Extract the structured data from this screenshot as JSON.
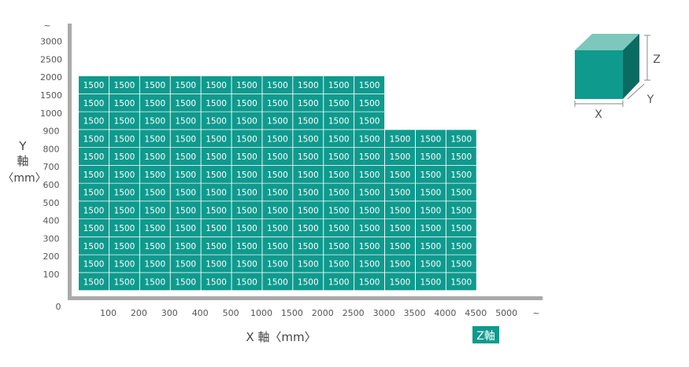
{
  "chart_data": {
    "type": "heatmap",
    "x_ticks": [
      "100",
      "200",
      "300",
      "400",
      "500",
      "1000",
      "1500",
      "2000",
      "2500",
      "3000",
      "3500",
      "4000",
      "4500",
      "5000"
    ],
    "x_tail": "~",
    "y_ticks": [
      "100",
      "200",
      "300",
      "400",
      "500",
      "600",
      "700",
      "800",
      "900",
      "1000",
      "1500",
      "2000",
      "2500",
      "3000"
    ],
    "y_tail": "~",
    "origin_label": "0",
    "xlabel": "X 軸〈mm〉",
    "ylabel_lines": [
      "Y",
      "軸",
      "〈mm〉"
    ],
    "z_label": "Z軸",
    "cell_value": "1500",
    "rows": [
      {
        "y": "100",
        "x_from": "100",
        "x_to": "4500",
        "value": 1500
      },
      {
        "y": "200",
        "x_from": "100",
        "x_to": "4500",
        "value": 1500
      },
      {
        "y": "300",
        "x_from": "100",
        "x_to": "4500",
        "value": 1500
      },
      {
        "y": "400",
        "x_from": "100",
        "x_to": "4500",
        "value": 1500
      },
      {
        "y": "500",
        "x_from": "100",
        "x_to": "4500",
        "value": 1500
      },
      {
        "y": "600",
        "x_from": "100",
        "x_to": "4500",
        "value": 1500
      },
      {
        "y": "700",
        "x_from": "100",
        "x_to": "4500",
        "value": 1500
      },
      {
        "y": "800",
        "x_from": "100",
        "x_to": "4500",
        "value": 1500
      },
      {
        "y": "900",
        "x_from": "100",
        "x_to": "4500",
        "value": 1500
      },
      {
        "y": "1000",
        "x_from": "100",
        "x_to": "3000",
        "value": 1500
      },
      {
        "y": "1500",
        "x_from": "100",
        "x_to": "3000",
        "value": 1500
      },
      {
        "y": "2000",
        "x_from": "100",
        "x_to": "3000",
        "value": 1500
      }
    ],
    "colors": {
      "cell": "#0f9a8e",
      "axis": "#aaaaaa",
      "z_badge": "#0f9a8e"
    }
  },
  "cube": {
    "x_label": "X",
    "y_label": "Y",
    "z_label": "Z"
  }
}
